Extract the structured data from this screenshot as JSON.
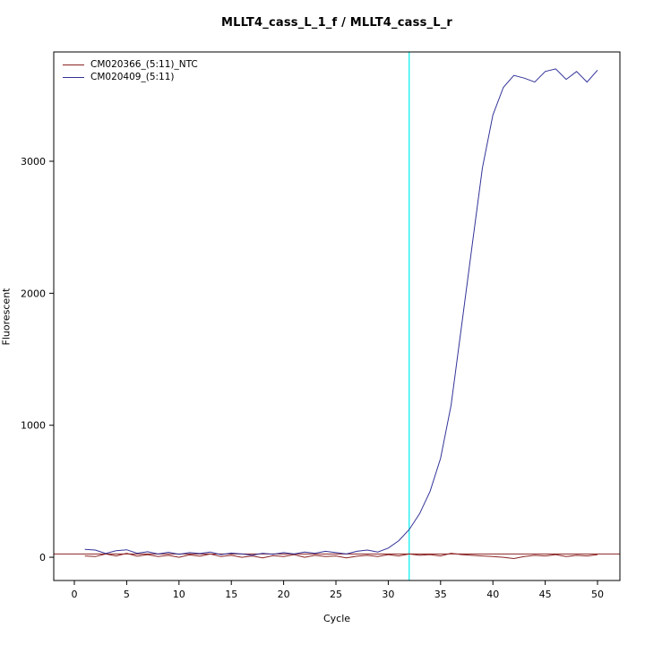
{
  "chart_data": {
    "type": "line",
    "title": "MLLT4_cass_L_1_f / MLLT4_cass_L_r",
    "xlabel": "Cycle",
    "ylabel": "Fluorescent",
    "x_ticks": [
      0,
      5,
      10,
      15,
      20,
      25,
      30,
      35,
      40,
      45,
      50
    ],
    "y_ticks": [
      0,
      1000,
      2000,
      3000
    ],
    "xlim": [
      -1.97,
      52.14
    ],
    "ylim": [
      -176,
      3828
    ],
    "grid": false,
    "legend_position": "top-left",
    "ct_marker_line": {
      "x": 32,
      "color": "#00eeee"
    },
    "threshold_line": {
      "y": 25,
      "color": "#8b2323"
    },
    "x": [
      1,
      2,
      3,
      4,
      5,
      6,
      7,
      8,
      9,
      10,
      11,
      12,
      13,
      14,
      15,
      16,
      17,
      18,
      19,
      20,
      21,
      22,
      23,
      24,
      25,
      26,
      27,
      28,
      29,
      30,
      31,
      32,
      33,
      34,
      35,
      36,
      37,
      38,
      39,
      40,
      41,
      42,
      43,
      44,
      45,
      46,
      47,
      48,
      49,
      50
    ],
    "series": [
      {
        "name": "CM020366_(5:11)_NTC",
        "color": "#8b2323",
        "values": [
          10,
          5,
          25,
          10,
          30,
          8,
          20,
          5,
          15,
          0,
          18,
          8,
          25,
          5,
          15,
          0,
          10,
          -5,
          12,
          5,
          20,
          0,
          15,
          5,
          10,
          -5,
          8,
          15,
          5,
          20,
          10,
          25,
          15,
          20,
          10,
          30,
          20,
          15,
          10,
          5,
          0,
          -10,
          5,
          15,
          10,
          20,
          5,
          15,
          10,
          20
        ]
      },
      {
        "name": "CM020409_(5:11)",
        "color": "#333399",
        "values": [
          60,
          55,
          28,
          50,
          57,
          30,
          42,
          25,
          38,
          22,
          35,
          28,
          40,
          20,
          32,
          25,
          15,
          30,
          22,
          35,
          25,
          40,
          30,
          45,
          35,
          25,
          45,
          55,
          40,
          70,
          125,
          210,
          330,
          500,
          750,
          1150,
          1750,
          2350,
          2950,
          3350,
          3560,
          3650,
          3630,
          3600,
          3680,
          3700,
          3620,
          3680,
          3600,
          3690
        ]
      }
    ]
  }
}
